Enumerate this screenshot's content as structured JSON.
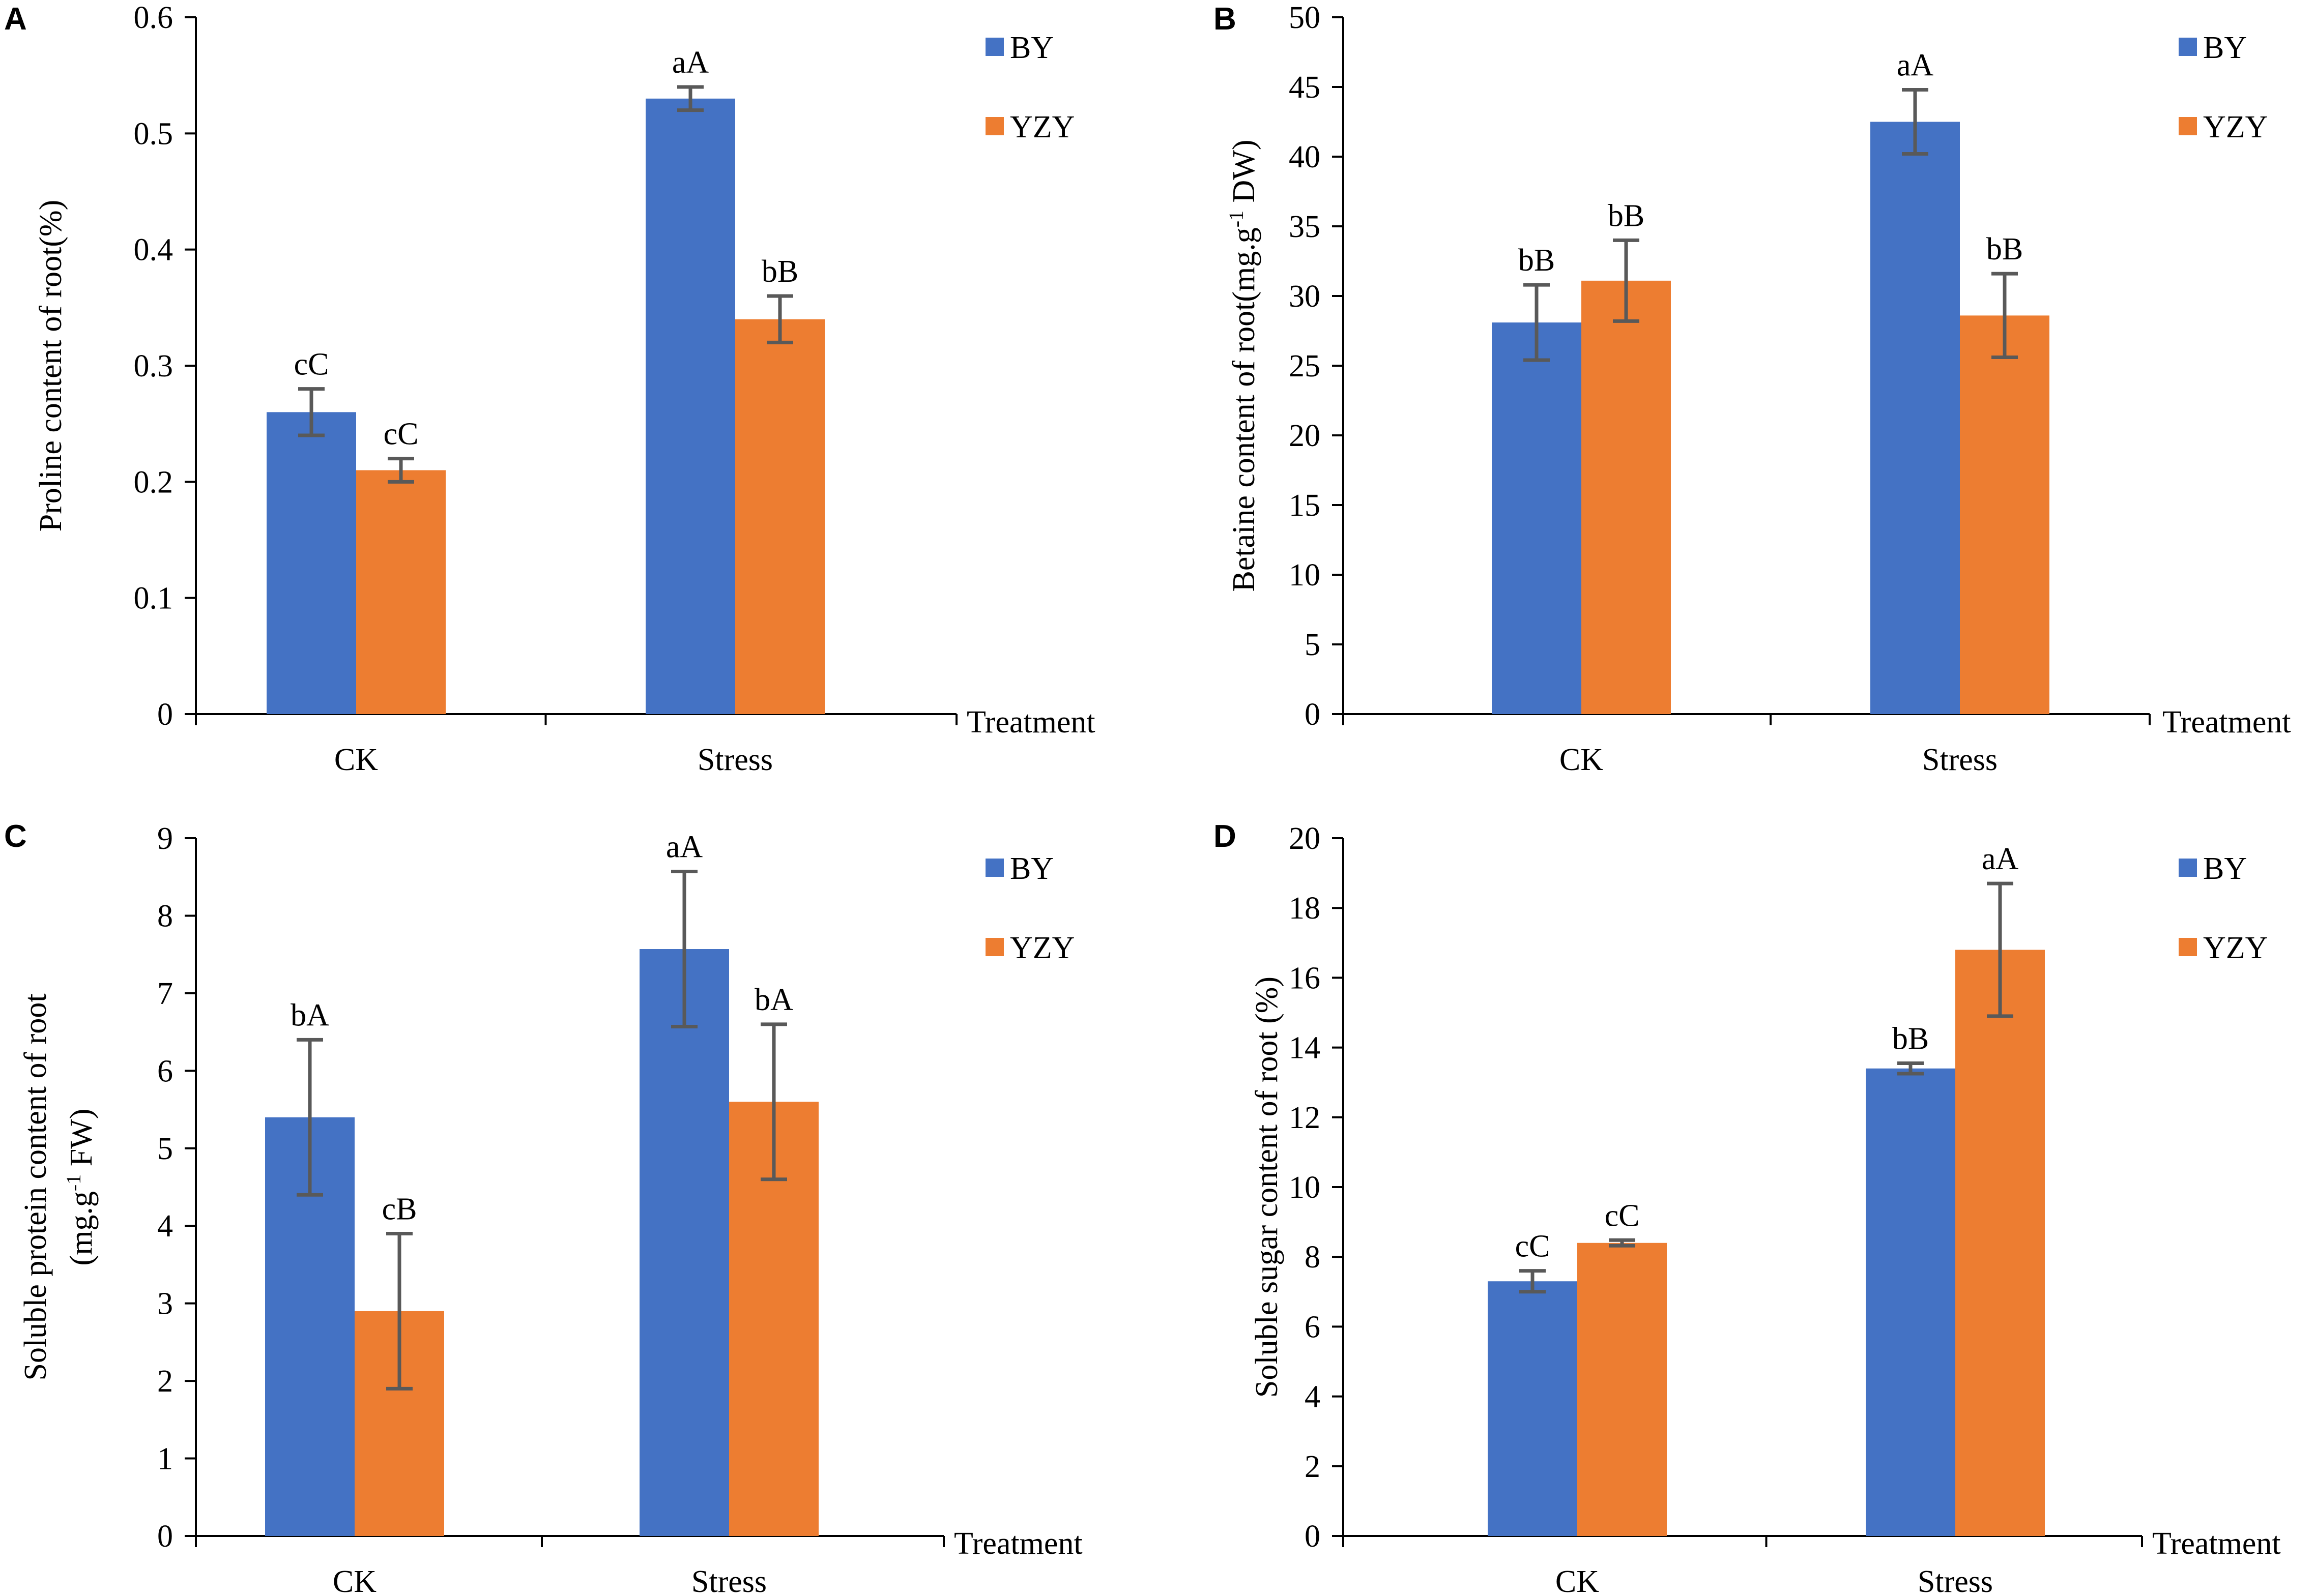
{
  "colors": {
    "BY": "#4472C4",
    "YZY": "#ED7D31",
    "error_bar": "#595959",
    "axis": "#000000"
  },
  "chart_data": [
    {
      "panel": "A",
      "type": "bar",
      "title": "",
      "ylabel_lines": [
        "Proline content of  root(%)"
      ],
      "xlabel": "Treatment",
      "categories": [
        "CK",
        "Stress"
      ],
      "series": [
        {
          "name": "BY",
          "values": [
            0.26,
            0.53
          ],
          "errors": [
            0.02,
            0.01
          ],
          "labels": [
            "cC",
            "aA"
          ]
        },
        {
          "name": "YZY",
          "values": [
            0.21,
            0.34
          ],
          "errors": [
            0.01,
            0.02
          ],
          "labels": [
            "cC",
            "bB"
          ]
        }
      ],
      "ylim": [
        0,
        0.6
      ],
      "ticks": [
        0,
        0.1,
        0.2,
        0.3,
        0.4,
        0.5,
        0.6
      ],
      "tick_labels": [
        "0",
        "0.1",
        "0.2",
        "0.3",
        "0.4",
        "0.5",
        "0.6"
      ],
      "legend": "top-right"
    },
    {
      "panel": "B",
      "type": "bar",
      "title": "",
      "ylabel_lines": [
        "Betaine content of  root(mg.g-1 DW)"
      ],
      "xlabel": "Treatment",
      "categories": [
        "CK",
        "Stress"
      ],
      "series": [
        {
          "name": "BY",
          "values": [
            28.1,
            42.5
          ],
          "errors": [
            2.7,
            2.3
          ],
          "labels": [
            "bB",
            "aA"
          ]
        },
        {
          "name": "YZY",
          "values": [
            31.1,
            28.6
          ],
          "errors": [
            2.9,
            3.0
          ],
          "labels": [
            "bB",
            "bB"
          ]
        }
      ],
      "ylim": [
        0,
        50
      ],
      "ticks": [
        0,
        5,
        10,
        15,
        20,
        25,
        30,
        35,
        40,
        45,
        50
      ],
      "tick_labels": [
        "0",
        "5",
        "10",
        "15",
        "20",
        "25",
        "30",
        "35",
        "40",
        "45",
        "50"
      ],
      "legend": "top-right"
    },
    {
      "panel": "C",
      "type": "bar",
      "title": "",
      "ylabel_lines": [
        "Soluble protein content of  root",
        "(mg.g-1 FW)"
      ],
      "xlabel": "Treatment",
      "categories": [
        "CK",
        "Stress"
      ],
      "series": [
        {
          "name": "BY",
          "values": [
            5.4,
            7.57
          ],
          "errors": [
            1.0,
            1.0
          ],
          "labels": [
            "bA",
            "aA"
          ]
        },
        {
          "name": "YZY",
          "values": [
            2.9,
            5.6
          ],
          "errors": [
            1.0,
            1.0
          ],
          "labels": [
            "cB",
            "bA"
          ]
        }
      ],
      "ylim": [
        0,
        9
      ],
      "ticks": [
        0,
        1,
        2,
        3,
        4,
        5,
        6,
        7,
        8,
        9
      ],
      "tick_labels": [
        "0",
        "1",
        "2",
        "3",
        "4",
        "5",
        "6",
        "7",
        "8",
        "9"
      ],
      "legend": "top-right"
    },
    {
      "panel": "D",
      "type": "bar",
      "title": "",
      "ylabel_lines": [
        "Soluble sugar content of  root (%)"
      ],
      "xlabel": "Treatment",
      "categories": [
        "CK",
        "Stress"
      ],
      "series": [
        {
          "name": "BY",
          "values": [
            7.3,
            13.4
          ],
          "errors": [
            0.3,
            0.15
          ],
          "labels": [
            "cC",
            "bB"
          ]
        },
        {
          "name": "YZY",
          "values": [
            8.4,
            16.8
          ],
          "errors": [
            0.08,
            1.9
          ],
          "labels": [
            "cC",
            "aA"
          ]
        }
      ],
      "ylim": [
        0,
        20
      ],
      "ticks": [
        0,
        2,
        4,
        6,
        8,
        10,
        12,
        14,
        16,
        18,
        20
      ],
      "tick_labels": [
        "0",
        "2",
        "4",
        "6",
        "8",
        "10",
        "12",
        "14",
        "16",
        "18",
        "20"
      ],
      "legend": "top-right"
    }
  ]
}
